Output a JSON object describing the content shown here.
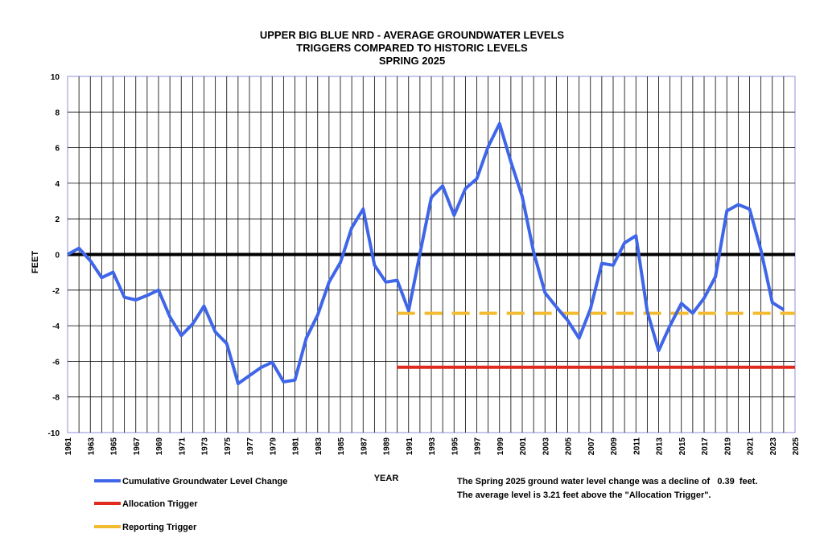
{
  "chart_data": {
    "type": "line",
    "title": [
      "UPPER BIG BLUE NRD - AVERAGE GROUNDWATER LEVELS",
      "TRIGGERS COMPARED TO HISTORIC LEVELS",
      "SPRING 2025"
    ],
    "xlabel": "YEAR",
    "ylabel": "FEET",
    "xlim": [
      1961,
      2025
    ],
    "ylim": [
      -10,
      10
    ],
    "y_ticks": [
      "-10",
      "-8",
      "-6",
      "-4",
      "-2",
      "0",
      "2",
      "4",
      "6",
      "8",
      "10"
    ],
    "x_ticks": [
      "1961",
      "1963",
      "1965",
      "1967",
      "1969",
      "1971",
      "1973",
      "1975",
      "1977",
      "1979",
      "1981",
      "1983",
      "1985",
      "1987",
      "1989",
      "1991",
      "1993",
      "1995",
      "1997",
      "1999",
      "2001",
      "2003",
      "2005",
      "2007",
      "2009",
      "2011",
      "2013",
      "2015",
      "2017",
      "2019",
      "2021",
      "2023",
      "2025"
    ],
    "grid": true,
    "zero_line": 0,
    "series": [
      {
        "name": "Cumulative Groundwater Level Change",
        "color": "#3f66e8",
        "x": [
          1961,
          1962,
          1963,
          1964,
          1965,
          1966,
          1967,
          1968,
          1969,
          1970,
          1971,
          1972,
          1973,
          1974,
          1975,
          1976,
          1977,
          1978,
          1979,
          1980,
          1981,
          1982,
          1983,
          1984,
          1985,
          1986,
          1987,
          1988,
          1989,
          1990,
          1991,
          1992,
          1993,
          1994,
          1995,
          1996,
          1997,
          1998,
          1999,
          2000,
          2001,
          2002,
          2003,
          2004,
          2005,
          2006,
          2007,
          2008,
          2009,
          2010,
          2011,
          2012,
          2013,
          2014,
          2015,
          2016,
          2017,
          2018,
          2019,
          2020,
          2021,
          2022,
          2023,
          2024
        ],
        "values": [
          0,
          0.35,
          -0.35,
          -1.3,
          -1.0,
          -2.4,
          -2.55,
          -2.3,
          -2.0,
          -3.5,
          -4.55,
          -3.9,
          -2.9,
          -4.35,
          -5.0,
          -7.25,
          -6.8,
          -6.35,
          -6.05,
          -7.15,
          -7.05,
          -4.7,
          -3.4,
          -1.55,
          -0.45,
          1.5,
          2.55,
          -0.6,
          -1.55,
          -1.45,
          -3.15,
          0.05,
          3.2,
          3.85,
          2.2,
          3.7,
          4.25,
          6.05,
          7.35,
          5.2,
          3.25,
          0.15,
          -2.15,
          -2.95,
          -3.7,
          -4.7,
          -3.05,
          -0.5,
          -0.6,
          0.65,
          1.05,
          -3.2,
          -5.4,
          -4.0,
          -2.75,
          -3.3,
          -2.45,
          -1.25,
          2.45,
          2.8,
          2.55,
          0.25,
          -2.7,
          -3.1
        ]
      },
      {
        "name": "Allocation Trigger",
        "color": "#e02a1e",
        "x": [
          1990,
          2025
        ],
        "values": [
          -6.33,
          -6.33
        ]
      },
      {
        "name": "Reporting Trigger",
        "color": "#f2bb30",
        "dashed": true,
        "x": [
          1990,
          2025
        ],
        "values": [
          -3.3,
          -3.3
        ]
      }
    ],
    "legend": [
      "Cumulative Groundwater Level Change",
      "Allocation Trigger",
      "Reporting Trigger"
    ],
    "legend_position": "bottom-left",
    "annotation": [
      "The Spring 2025 ground water level change was a decline of   0.39  feet.",
      "The average level is 3.21 feet above the \"Allocation Trigger\"."
    ]
  }
}
